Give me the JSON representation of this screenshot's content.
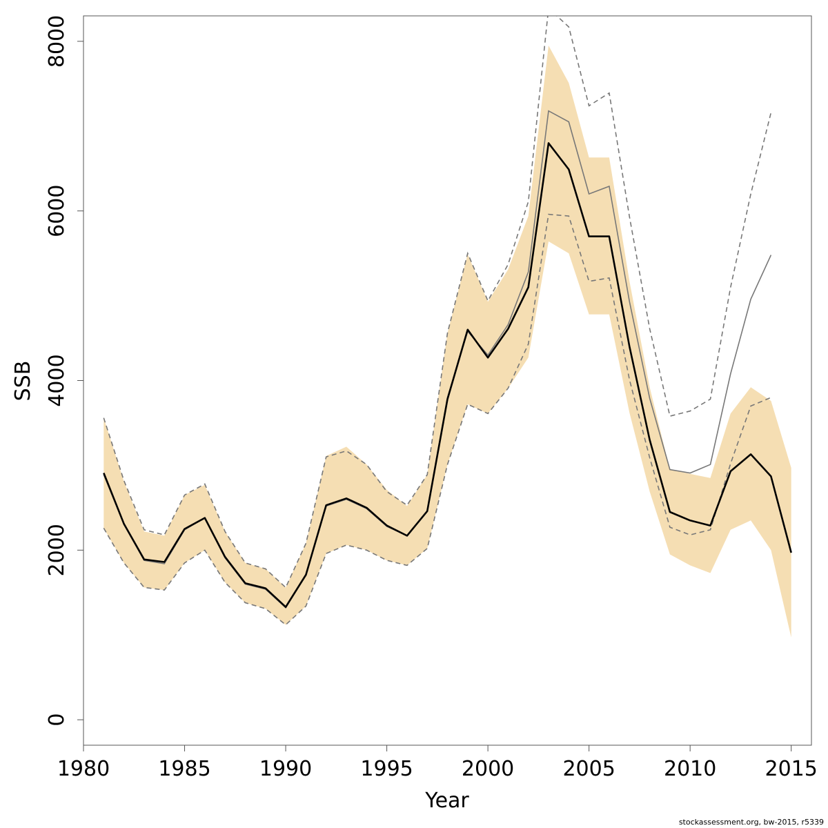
{
  "chart_data": {
    "type": "area",
    "xlabel": "Year",
    "ylabel": "SSB",
    "xlim": [
      1980,
      2016
    ],
    "ylim": [
      -300,
      8300
    ],
    "x_ticks": [
      1980,
      1985,
      1990,
      1995,
      2000,
      2005,
      2010,
      2015
    ],
    "y_ticks": [
      0,
      2000,
      4000,
      6000,
      8000
    ],
    "grid": false,
    "legend": "none",
    "colors": {
      "band": "#f5deb3",
      "current_line": "#000000",
      "previous_line": "#777777",
      "previous_bounds": "#777777"
    },
    "series": [
      {
        "role": "current",
        "x": [
          1981,
          1982,
          1983,
          1984,
          1985,
          1986,
          1987,
          1988,
          1989,
          1990,
          1991,
          1992,
          1993,
          1994,
          1995,
          1996,
          1997,
          1998,
          1999,
          2000,
          2001,
          2002,
          2003,
          2004,
          2005,
          2006,
          2007,
          2008,
          2009,
          2010,
          2011,
          2012,
          2013,
          2014,
          2015
        ],
        "values": [
          2910,
          2310,
          1890,
          1860,
          2250,
          2380,
          1920,
          1610,
          1550,
          1330,
          1710,
          2530,
          2610,
          2500,
          2290,
          2170,
          2460,
          3780,
          4600,
          4270,
          4610,
          5100,
          6800,
          6490,
          5700,
          5700,
          4400,
          3300,
          2450,
          2350,
          2290,
          2930,
          3130,
          2870,
          1970
        ],
        "lower": [
          2260,
          1850,
          1560,
          1530,
          1850,
          2000,
          1620,
          1380,
          1310,
          1120,
          1340,
          1960,
          2060,
          2000,
          1880,
          1820,
          2020,
          3010,
          3720,
          3610,
          3910,
          4270,
          5640,
          5500,
          4780,
          4780,
          3620,
          2690,
          1950,
          1820,
          1730,
          2240,
          2350,
          2000,
          970
        ],
        "upper": [
          3560,
          2810,
          2220,
          2170,
          2650,
          2770,
          2220,
          1850,
          1780,
          1560,
          2080,
          3110,
          3220,
          3010,
          2710,
          2520,
          2890,
          4560,
          5490,
          4930,
          5310,
          5940,
          7950,
          7510,
          6630,
          6630,
          5170,
          3920,
          2950,
          2900,
          2850,
          3610,
          3920,
          3760,
          2970
        ]
      },
      {
        "role": "previous",
        "x": [
          1981,
          1982,
          1983,
          1984,
          1985,
          1986,
          1987,
          1988,
          1989,
          1990,
          1991,
          1992,
          1993,
          1994,
          1995,
          1996,
          1997,
          1998,
          1999,
          2000,
          2001,
          2002,
          2003,
          2004,
          2005,
          2006,
          2007,
          2008,
          2009,
          2010,
          2011,
          2012,
          2013,
          2014
        ],
        "values": [
          2890,
          2310,
          1880,
          1840,
          2240,
          2380,
          1910,
          1600,
          1540,
          1320,
          1710,
          2520,
          2600,
          2490,
          2280,
          2170,
          2460,
          3800,
          4580,
          4300,
          4660,
          5280,
          7180,
          7050,
          6200,
          6290,
          4930,
          3790,
          2950,
          2910,
          3010,
          4080,
          4960,
          5480
        ],
        "lower": [
          2260,
          1850,
          1560,
          1530,
          1850,
          2000,
          1620,
          1380,
          1310,
          1120,
          1340,
          1960,
          2060,
          2000,
          1880,
          1820,
          2020,
          3010,
          3720,
          3610,
          3910,
          4430,
          5960,
          5940,
          5170,
          5210,
          4010,
          3090,
          2270,
          2180,
          2240,
          3020,
          3700,
          3800
        ],
        "upper": [
          3560,
          2820,
          2240,
          2180,
          2650,
          2780,
          2220,
          1850,
          1780,
          1560,
          2080,
          3100,
          3170,
          3010,
          2690,
          2530,
          2890,
          4560,
          5500,
          4940,
          5370,
          6110,
          8390,
          8170,
          7240,
          7390,
          5930,
          4610,
          3580,
          3640,
          3780,
          5100,
          6200,
          7160
        ]
      }
    ]
  },
  "footer": {
    "note": "stockassessment.org, bw-2015, r5339"
  }
}
